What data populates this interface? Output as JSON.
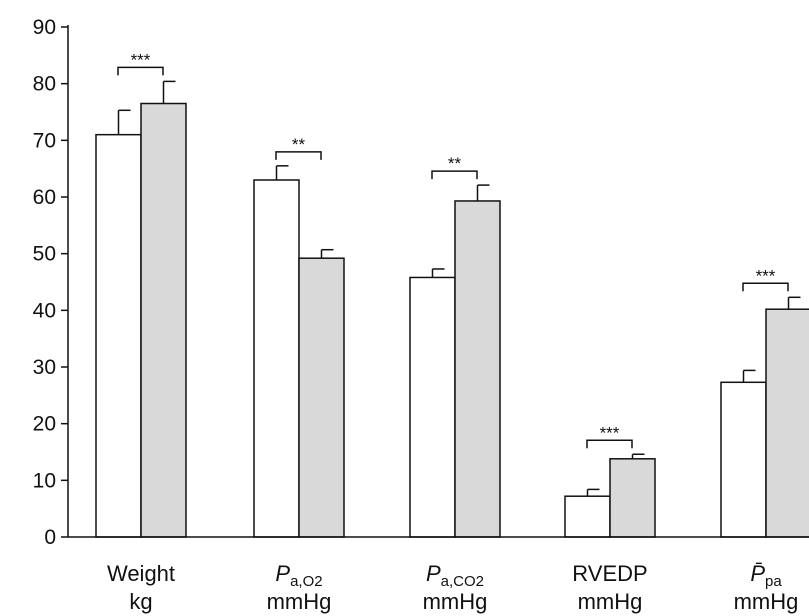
{
  "chart_data": {
    "type": "bar",
    "title": "",
    "xlabel": "",
    "ylabel": "",
    "ylim": [
      0,
      90
    ],
    "yticks": [
      0,
      10,
      20,
      30,
      40,
      50,
      60,
      70,
      80,
      90
    ],
    "grid": false,
    "legend": "none",
    "categories": [
      {
        "main": "Weight",
        "sub": "",
        "unit": "kg"
      },
      {
        "main": "P",
        "sub": "a,O2",
        "unit": "mmHg"
      },
      {
        "main": "P",
        "sub": "a,CO2",
        "unit": "mmHg"
      },
      {
        "main": "RVEDP",
        "sub": "",
        "unit": "mmHg"
      },
      {
        "main": "P̄",
        "sub": "pa",
        "unit": "mmHg"
      }
    ],
    "series": [
      {
        "color": "#ffffff",
        "values": [
          71,
          63,
          45.8,
          7.2,
          27.3
        ],
        "errors": [
          4.3,
          2.5,
          1.5,
          1.2,
          2.1
        ]
      },
      {
        "color": "#d9d9d9",
        "values": [
          76.5,
          49.2,
          59.3,
          13.8,
          40.2
        ],
        "errors": [
          3.9,
          1.5,
          2.8,
          0.8,
          2.1
        ]
      }
    ],
    "significance": [
      "***",
      "**",
      "**",
      "***",
      "***"
    ]
  }
}
